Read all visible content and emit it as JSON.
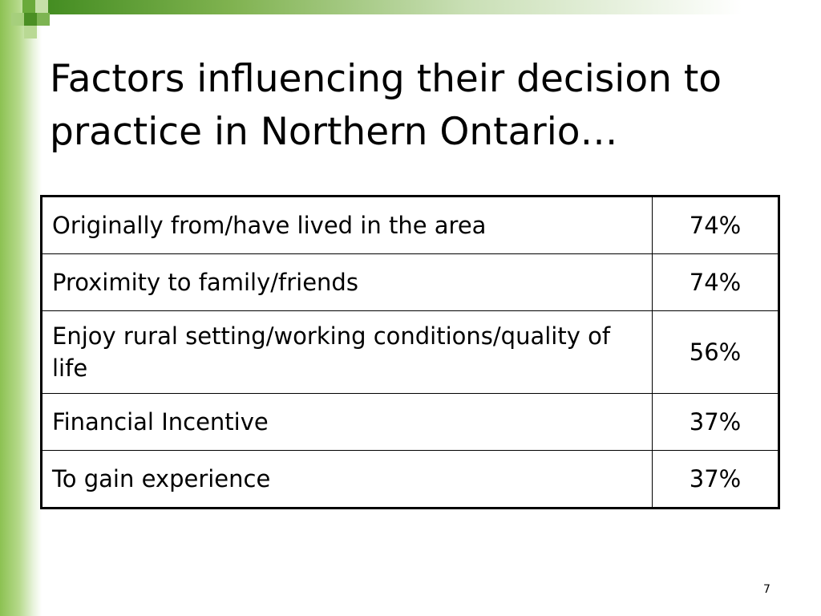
{
  "title": "Factors influencing their decision to practice in Northern Ontario…",
  "table": {
    "rows": [
      [
        "Originally from/have lived in the area",
        "74%"
      ],
      [
        "Proximity to family/friends",
        "74%"
      ],
      [
        "Enjoy rural setting/working conditions/quality of life",
        "56%"
      ],
      [
        "Financial Incentive",
        "37%"
      ],
      [
        "To gain experience",
        "37%"
      ]
    ]
  },
  "page_number": "7"
}
